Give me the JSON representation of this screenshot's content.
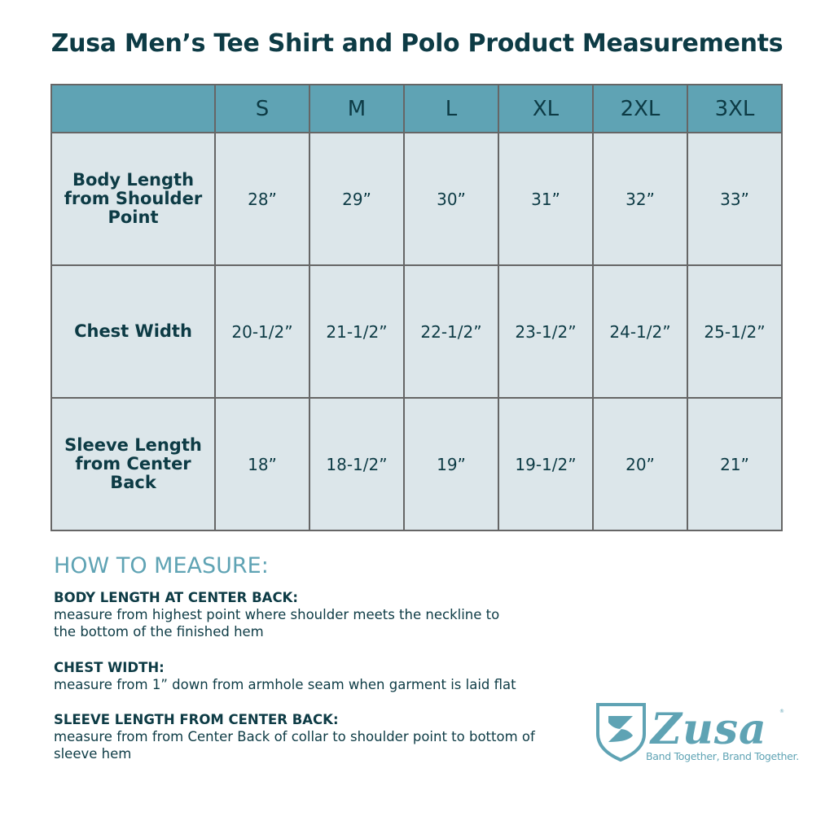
{
  "title": "Zusa Men’s Tee Shirt and Polo Product Measurements",
  "table": {
    "sizes": [
      "S",
      "M",
      "L",
      "XL",
      "2XL",
      "3XL"
    ],
    "rows": [
      {
        "label": "Body Length from Shoulder Point",
        "values": [
          "28”",
          "29”",
          "30”",
          "31”",
          "32”",
          "33”"
        ]
      },
      {
        "label": "Chest Width",
        "values": [
          "20-1/2”",
          "21-1/2”",
          "22-1/2”",
          "23-1/2”",
          "24-1/2”",
          "25-1/2”"
        ]
      },
      {
        "label": "Sleeve Length from Center Back",
        "values": [
          "18”",
          "18-1/2”",
          "19”",
          "19-1/2”",
          "20”",
          "21”"
        ]
      }
    ]
  },
  "how_to_measure": {
    "heading": "HOW TO MEASURE:",
    "sections": [
      {
        "title": "BODY LENGTH AT CENTER BACK:",
        "body": "measure from highest point where shoulder meets the neckline to the bottom of the finished hem"
      },
      {
        "title": "CHEST WIDTH:",
        "body": "measure from 1” down from armhole seam when garment is laid flat"
      },
      {
        "title": "SLEEVE LENGTH FROM CENTER BACK:",
        "body": "measure from from Center Back of collar to shoulder point to bottom of sleeve hem"
      }
    ]
  },
  "logo": {
    "wordmark": "Zusa",
    "tagline": "Band Together, Brand Together."
  },
  "colors": {
    "header": "#5fa3b4",
    "cell": "#dce6ea",
    "text": "#0d3b45",
    "accent": "#5fa3b4"
  }
}
